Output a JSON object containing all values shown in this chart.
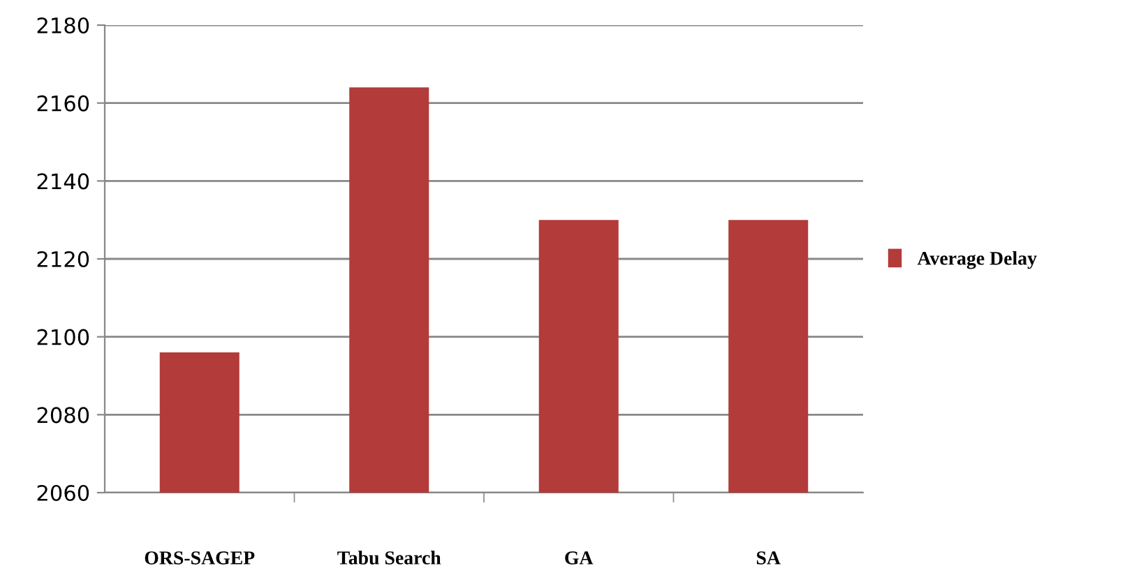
{
  "chart_data": {
    "type": "bar",
    "categories": [
      "ORS-SAGEP",
      "Tabu Search",
      "GA",
      "SA"
    ],
    "series": [
      {
        "name": "Average Delay",
        "color": "#b33b39",
        "values": [
          2096,
          2164,
          2130,
          2130
        ]
      }
    ],
    "ylim": [
      2060,
      2180
    ],
    "yticks": [
      2060,
      2080,
      2100,
      2120,
      2140,
      2160,
      2180
    ],
    "grid": "y",
    "legend": "right"
  }
}
